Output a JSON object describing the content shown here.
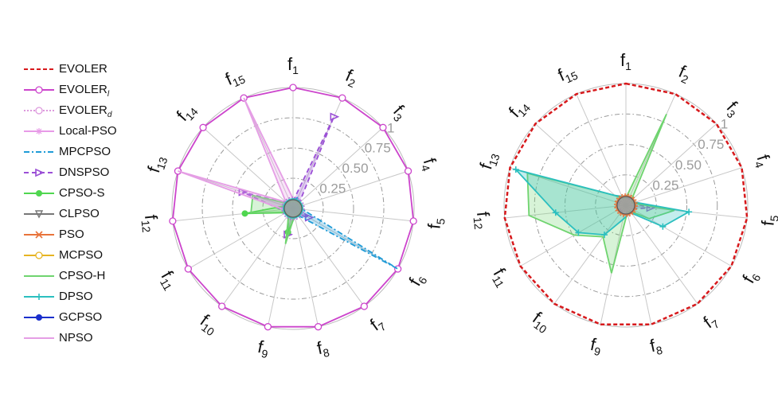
{
  "legend": [
    {
      "name": "EVOLER",
      "sub": "",
      "color": "#d7191c",
      "dash": "5,3",
      "marker": "none"
    },
    {
      "name": "EVOLER",
      "sub": "l",
      "color": "#cc44cc",
      "dash": "",
      "marker": "hex"
    },
    {
      "name": "EVOLER",
      "sub": "d",
      "color": "#dd99dd",
      "dash": "2,2",
      "marker": "circle"
    },
    {
      "name": "Local-PSO",
      "sub": "",
      "color": "#e79ae7",
      "dash": "",
      "marker": "star"
    },
    {
      "name": "MPCPSO",
      "sub": "",
      "color": "#1f9bd7",
      "dash": "7,3,2,3",
      "marker": "none"
    },
    {
      "name": "DNSPSO",
      "sub": "",
      "color": "#9b4fd6",
      "dash": "6,4",
      "marker": "tri-right"
    },
    {
      "name": "CPSO-S",
      "sub": "",
      "color": "#4fd64f",
      "dash": "",
      "marker": "dot"
    },
    {
      "name": "CLPSO",
      "sub": "",
      "color": "#777777",
      "dash": "",
      "marker": "tri-down"
    },
    {
      "name": "PSO",
      "sub": "",
      "color": "#e8733a",
      "dash": "",
      "marker": "x"
    },
    {
      "name": "MCPSO",
      "sub": "",
      "color": "#e6b422",
      "dash": "",
      "marker": "circle"
    },
    {
      "name": "CPSO-H",
      "sub": "",
      "color": "#6fd46f",
      "dash": "",
      "marker": "none"
    },
    {
      "name": "DPSO",
      "sub": "",
      "color": "#2bbfbf",
      "dash": "",
      "marker": "plus"
    },
    {
      "name": "GCPSO",
      "sub": "",
      "color": "#1a2fcc",
      "dash": "",
      "marker": "dot"
    },
    {
      "name": "NPSO",
      "sub": "",
      "color": "#e59ee5",
      "dash": "",
      "marker": "none"
    }
  ],
  "chart_data": [
    {
      "type": "radar",
      "axes": [
        "f1",
        "f2",
        "f3",
        "f4",
        "f5",
        "f6",
        "f7",
        "f8",
        "f9",
        "f10",
        "f11",
        "f12",
        "f13",
        "f14",
        "f15"
      ],
      "rlim": [
        0,
        1
      ],
      "rticks": [
        "0.25",
        "0.50",
        "0.75",
        "1"
      ],
      "series": [
        {
          "name": "EVOLER_l",
          "values": [
            1,
            1,
            1,
            1,
            1,
            1,
            1,
            1,
            1,
            1,
            1,
            1,
            1,
            1,
            1
          ]
        },
        {
          "name": "DNSPSO",
          "values": [
            0.06,
            0.83,
            0.07,
            0.06,
            0.06,
            0.15,
            0.06,
            0.06,
            0.22,
            0.06,
            0.06,
            0.1,
            0.44,
            0.06,
            0.06
          ]
        },
        {
          "name": "MPCPSO",
          "values": [
            0.07,
            0.1,
            0.07,
            0.07,
            0.08,
            1.0,
            0.07,
            0.07,
            0.07,
            0.07,
            0.07,
            0.07,
            0.07,
            0.07,
            0.07
          ]
        },
        {
          "name": "CPSO-S",
          "values": [
            0.07,
            0.07,
            0.07,
            0.07,
            0.07,
            0.07,
            0.07,
            0.07,
            0.2,
            0.07,
            0.07,
            0.4,
            0.07,
            0.07,
            0.07
          ]
        },
        {
          "name": "CPSO-H",
          "values": [
            0.06,
            0.06,
            0.06,
            0.06,
            0.06,
            0.06,
            0.06,
            0.06,
            0.3,
            0.06,
            0.06,
            0.35,
            0.35,
            0.06,
            0.06
          ]
        },
        {
          "name": "NPSO",
          "values": [
            0.08,
            0.08,
            0.08,
            0.08,
            0.08,
            0.08,
            0.08,
            0.08,
            0.08,
            0.08,
            0.08,
            0.08,
            1.0,
            0.08,
            1.0
          ]
        },
        {
          "name": "DPSO",
          "values": [
            0.08,
            0.08,
            0.08,
            0.08,
            0.08,
            0.08,
            0.08,
            0.08,
            0.08,
            0.08,
            0.08,
            0.08,
            0.08,
            0.08,
            0.08
          ]
        }
      ]
    },
    {
      "type": "radar",
      "axes": [
        "f1",
        "f2",
        "f3",
        "f4",
        "f5",
        "f6",
        "f7",
        "f8",
        "f9",
        "f10",
        "f11",
        "f12",
        "f13",
        "f14",
        "f15"
      ],
      "rlim": [
        0,
        1
      ],
      "rticks": [
        "0.25",
        "0.50",
        "0.75",
        "1"
      ],
      "series": [
        {
          "name": "EVOLER",
          "values": [
            1,
            1,
            1,
            1,
            1,
            1,
            1,
            1,
            1,
            1,
            1,
            1,
            1,
            1,
            1
          ]
        },
        {
          "name": "DNSPSO",
          "values": [
            0.06,
            0.06,
            0.06,
            0.06,
            0.2,
            0.06,
            0.06,
            0.06,
            0.06,
            0.06,
            0.06,
            0.06,
            0.06,
            0.06,
            0.06
          ]
        },
        {
          "name": "CPSO-H",
          "values": [
            0.06,
            0.82,
            0.06,
            0.06,
            0.4,
            0.22,
            0.06,
            0.06,
            0.57,
            0.32,
            0.49,
            0.8,
            0.85,
            0.12,
            0.06
          ]
        },
        {
          "name": "DPSO",
          "values": [
            0.08,
            0.08,
            0.08,
            0.08,
            0.52,
            0.35,
            0.08,
            0.08,
            0.12,
            0.3,
            0.45,
            0.58,
            0.95,
            0.12,
            0.08
          ]
        },
        {
          "name": "PSO",
          "values": [
            0.08,
            0.08,
            0.08,
            0.08,
            0.08,
            0.08,
            0.08,
            0.08,
            0.08,
            0.08,
            0.08,
            0.08,
            0.08,
            0.08,
            0.08
          ]
        }
      ]
    }
  ]
}
